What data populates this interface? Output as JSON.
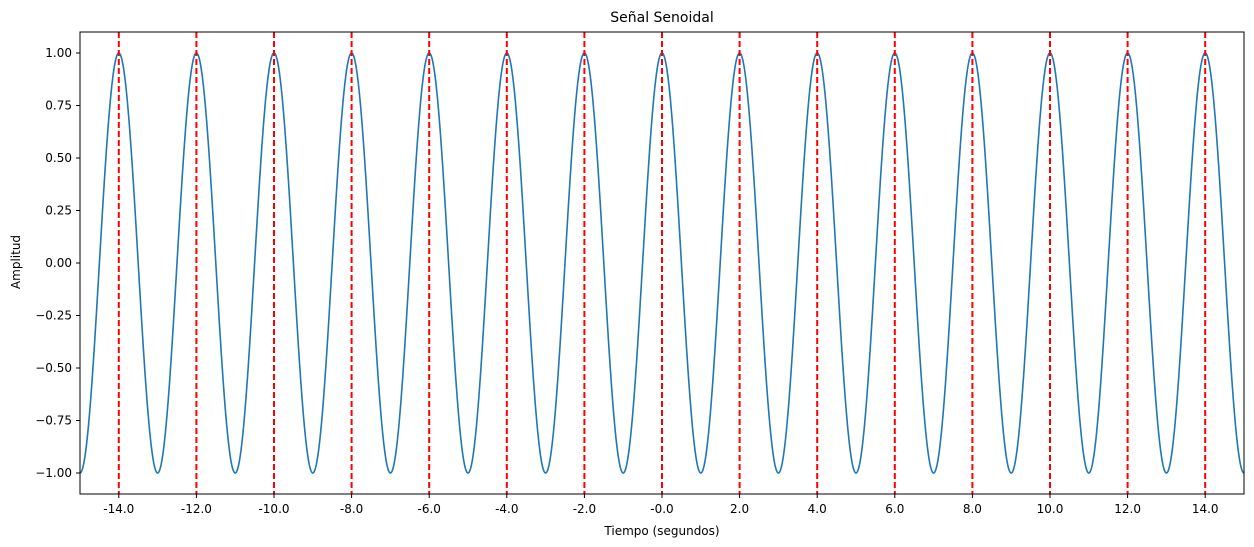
{
  "chart_data": {
    "type": "line",
    "title": "Señal Senoidal",
    "xlabel": "Tiempo (segundos)",
    "ylabel": "Amplitud",
    "xlim": [
      -15,
      15
    ],
    "ylim": [
      -1.1,
      1.1
    ],
    "x_ticks": [
      -14,
      -12,
      -10,
      -8,
      -6,
      -4,
      -2,
      0,
      2,
      4,
      6,
      8,
      10,
      12,
      14
    ],
    "x_tick_labels": [
      "-14.0",
      "-12.0",
      "-10.0",
      "-8.0",
      "-6.0",
      "-4.0",
      "-2.0",
      "-0.0",
      "2.0",
      "4.0",
      "6.0",
      "8.0",
      "10.0",
      "12.0",
      "14.0"
    ],
    "y_ticks": [
      1.0,
      0.75,
      0.5,
      0.25,
      0.0,
      -0.25,
      -0.5,
      -0.75,
      -1.0
    ],
    "y_tick_labels": [
      "1.00",
      "0.75",
      "0.50",
      "0.25",
      "0.00",
      "−0.25",
      "−0.50",
      "−0.75",
      "−1.00"
    ],
    "grid": false,
    "series": [
      {
        "function": "cos(pi * t)",
        "x_range": [
          -15,
          15
        ],
        "period": 2,
        "amplitude": 1,
        "color": "#1f77b4"
      }
    ],
    "vertical_lines": {
      "x": [
        -14,
        -12,
        -10,
        -8,
        -6,
        -4,
        -2,
        0,
        2,
        4,
        6,
        8,
        10,
        12,
        14
      ],
      "color": "#ff0000",
      "style": "dashed"
    }
  }
}
